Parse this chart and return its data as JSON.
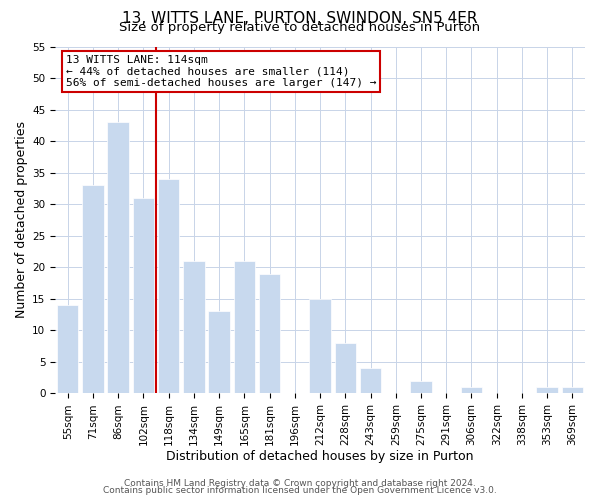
{
  "title": "13, WITTS LANE, PURTON, SWINDON, SN5 4ER",
  "subtitle": "Size of property relative to detached houses in Purton",
  "xlabel": "Distribution of detached houses by size in Purton",
  "ylabel": "Number of detached properties",
  "categories": [
    "55sqm",
    "71sqm",
    "86sqm",
    "102sqm",
    "118sqm",
    "134sqm",
    "149sqm",
    "165sqm",
    "181sqm",
    "196sqm",
    "212sqm",
    "228sqm",
    "243sqm",
    "259sqm",
    "275sqm",
    "291sqm",
    "306sqm",
    "322sqm",
    "338sqm",
    "353sqm",
    "369sqm"
  ],
  "values": [
    14,
    33,
    43,
    31,
    34,
    21,
    13,
    21,
    19,
    0,
    15,
    8,
    4,
    0,
    2,
    0,
    1,
    0,
    0,
    1,
    1
  ],
  "bar_color": "#c8d9ee",
  "bar_edge_color": "#ffffff",
  "reference_line_index": 4,
  "reference_line_color": "#cc0000",
  "annotation_line1": "13 WITTS LANE: 114sqm",
  "annotation_line2": "← 44% of detached houses are smaller (114)",
  "annotation_line3": "56% of semi-detached houses are larger (147) →",
  "annotation_box_color": "#ffffff",
  "annotation_box_edge_color": "#cc0000",
  "ylim": [
    0,
    55
  ],
  "yticks": [
    0,
    5,
    10,
    15,
    20,
    25,
    30,
    35,
    40,
    45,
    50,
    55
  ],
  "footer_line1": "Contains HM Land Registry data © Crown copyright and database right 2024.",
  "footer_line2": "Contains public sector information licensed under the Open Government Licence v3.0.",
  "bg_color": "#ffffff",
  "grid_color": "#c8d4e8",
  "title_fontsize": 11,
  "subtitle_fontsize": 9.5,
  "axis_label_fontsize": 9,
  "tick_fontsize": 7.5,
  "annotation_fontsize": 8,
  "footer_fontsize": 6.5
}
